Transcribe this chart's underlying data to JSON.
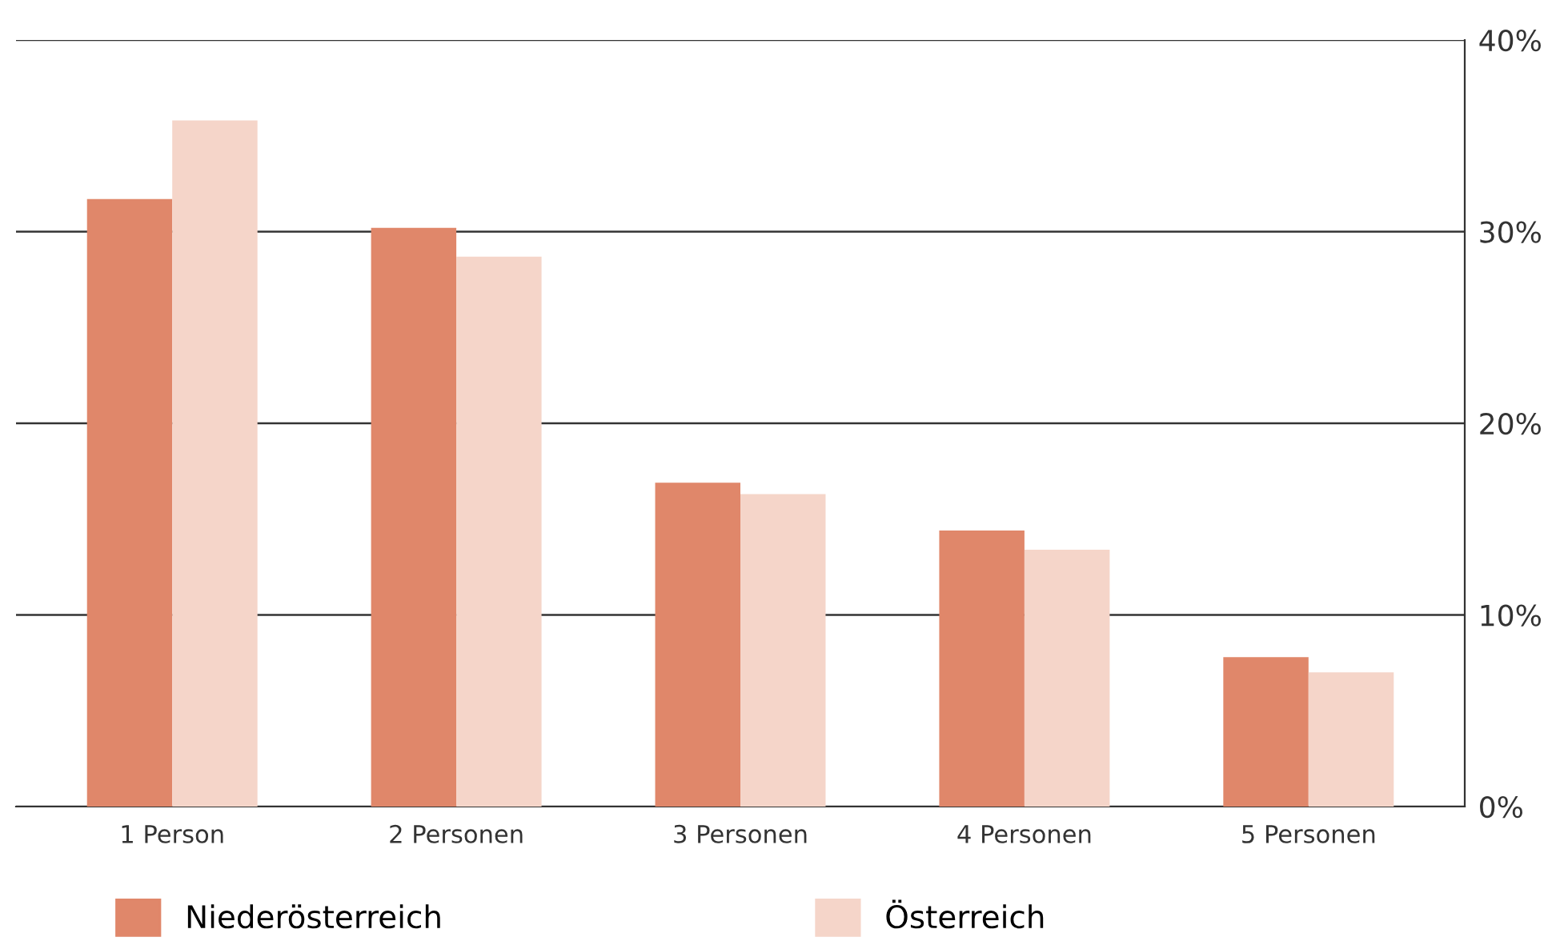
{
  "chart_data": {
    "type": "bar",
    "categories": [
      "1 Person",
      "2 Personen",
      "3 Personen",
      "4 Personen",
      "5 Personen"
    ],
    "series": [
      {
        "name": "Niederösterreich",
        "color": "#e0876a",
        "values": [
          31.7,
          30.2,
          16.9,
          14.4,
          7.8
        ]
      },
      {
        "name": "Österreich",
        "color": "#f5d5c9",
        "values": [
          35.8,
          28.7,
          16.3,
          13.4,
          7.0
        ]
      }
    ],
    "ylim": [
      0,
      40
    ],
    "yticks": [
      {
        "value": 0,
        "label": "0%"
      },
      {
        "value": 10,
        "label": "10%"
      },
      {
        "value": 20,
        "label": "20%"
      },
      {
        "value": 30,
        "label": "30%"
      },
      {
        "value": 40,
        "label": "40%"
      }
    ],
    "grid": "y",
    "legend": "bottom"
  }
}
